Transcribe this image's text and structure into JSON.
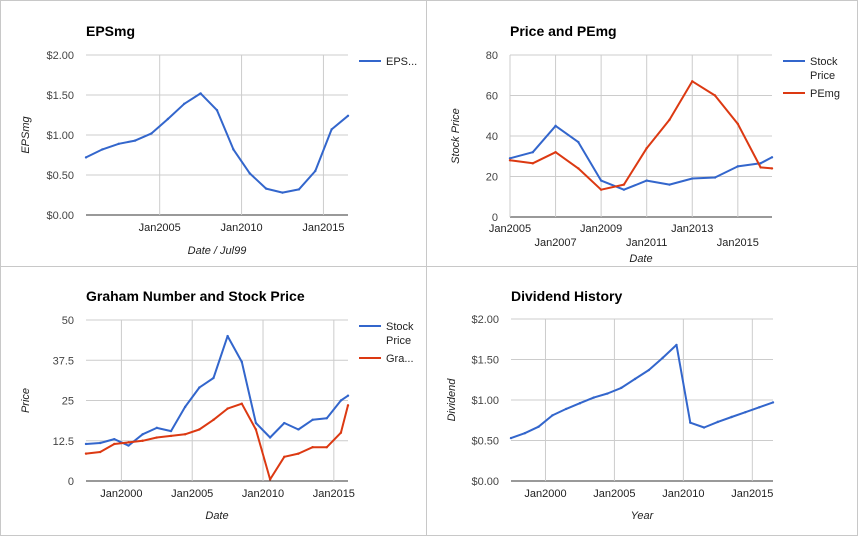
{
  "chart_data": [
    {
      "type": "line",
      "title": "EPSmg",
      "xlabel": "Date / Jul99",
      "ylabel": "EPSmg",
      "ylim": [
        0,
        2
      ],
      "yticks": [
        "$0.00",
        "$0.50",
        "$1.00",
        "$1.50",
        "$2.00"
      ],
      "xlim": [
        2000.5,
        2016.5
      ],
      "xticks": [
        {
          "v": 2005,
          "label": "Jan2005"
        },
        {
          "v": 2010,
          "label": "Jan2010"
        },
        {
          "v": 2015,
          "label": "Jan2015"
        }
      ],
      "legend_position": "right",
      "series": [
        {
          "name": "EPS...",
          "color": "#3366cc",
          "x": [
            2000.5,
            2001.5,
            2002.5,
            2003.5,
            2004.5,
            2005.5,
            2006.5,
            2007.5,
            2008.5,
            2009.5,
            2010.5,
            2011.5,
            2012.5,
            2013.5,
            2014.5,
            2015.5,
            2016.5
          ],
          "y": [
            0.72,
            0.82,
            0.89,
            0.93,
            1.02,
            1.2,
            1.39,
            1.52,
            1.31,
            0.82,
            0.52,
            0.33,
            0.28,
            0.32,
            0.55,
            1.07,
            1.24
          ]
        }
      ]
    },
    {
      "type": "line",
      "title": "Price and PEmg",
      "xlabel": "Date",
      "ylabel": "Stock Price",
      "ylim": [
        0,
        80
      ],
      "yticks": [
        "0",
        "20",
        "40",
        "60",
        "80"
      ],
      "xlim": [
        2005,
        2016.5
      ],
      "xticks_top": [
        {
          "v": 2005,
          "label": "Jan2005"
        },
        {
          "v": 2009,
          "label": "Jan2009"
        },
        {
          "v": 2013,
          "label": "Jan2013"
        }
      ],
      "xticks_bottom": [
        {
          "v": 2007,
          "label": "Jan2007"
        },
        {
          "v": 2011,
          "label": "Jan2011"
        },
        {
          "v": 2015,
          "label": "Jan2015"
        }
      ],
      "legend_position": "right",
      "series": [
        {
          "name": "Stock Price",
          "color": "#3366cc",
          "x": [
            2005,
            2006,
            2007,
            2008,
            2009,
            2010,
            2011,
            2012,
            2013,
            2014,
            2015,
            2016,
            2016.5
          ],
          "y": [
            29,
            32,
            45,
            37,
            18,
            13.5,
            18,
            16,
            19,
            19.5,
            25,
            26.5,
            29.5
          ]
        },
        {
          "name": "PEmg",
          "color": "#dc3912",
          "x": [
            2005,
            2006,
            2007,
            2008,
            2009,
            2010,
            2011,
            2012,
            2013,
            2014,
            2015,
            2016,
            2016.5
          ],
          "y": [
            28,
            26.5,
            32,
            24,
            13.5,
            16,
            34,
            48,
            67,
            60,
            46,
            24.5,
            24
          ]
        }
      ]
    },
    {
      "type": "line",
      "title": "Graham Number and Stock Price",
      "xlabel": "Date",
      "ylabel": "Price",
      "ylim": [
        0,
        50
      ],
      "yticks": [
        "0",
        "12.5",
        "25",
        "37.5",
        "50"
      ],
      "xlim": [
        1997.5,
        2016
      ],
      "xticks": [
        {
          "v": 2000,
          "label": "Jan2000"
        },
        {
          "v": 2005,
          "label": "Jan2005"
        },
        {
          "v": 2010,
          "label": "Jan2010"
        },
        {
          "v": 2015,
          "label": "Jan2015"
        }
      ],
      "legend_position": "right",
      "series": [
        {
          "name": "Stock Price",
          "color": "#3366cc",
          "x": [
            1997.5,
            1998.5,
            1999.5,
            2000.5,
            2001.5,
            2002.5,
            2003.5,
            2004.5,
            2005.5,
            2006.5,
            2007.5,
            2008.5,
            2009.5,
            2010.5,
            2011.5,
            2012.5,
            2013.5,
            2014.5,
            2015.5,
            2016
          ],
          "y": [
            11.5,
            11.8,
            13,
            11,
            14.5,
            16.5,
            15.5,
            23,
            29,
            32,
            45,
            37,
            18,
            13.5,
            18,
            16,
            19,
            19.5,
            25,
            26.5
          ]
        },
        {
          "name": "Gra...",
          "color": "#dc3912",
          "x": [
            1997.5,
            1998.5,
            1999.5,
            2000.5,
            2001.5,
            2002.5,
            2003.5,
            2004.5,
            2005.5,
            2006.5,
            2007.5,
            2008.5,
            2009.5,
            2010.5,
            2011.5,
            2012.5,
            2013.5,
            2014.5,
            2015.5,
            2016
          ],
          "y": [
            8.5,
            9,
            11.5,
            12,
            12.5,
            13.5,
            14,
            14.5,
            16,
            19,
            22.5,
            24,
            16,
            0.5,
            7.5,
            8.5,
            10.5,
            10.5,
            15,
            23.5
          ]
        }
      ]
    },
    {
      "type": "line",
      "title": "Dividend History",
      "xlabel": "Year",
      "ylabel": "Dividend",
      "ylim": [
        0,
        2
      ],
      "yticks": [
        "$0.00",
        "$0.50",
        "$1.00",
        "$1.50",
        "$2.00"
      ],
      "xlim": [
        1997.5,
        2016.5
      ],
      "xticks": [
        {
          "v": 2000,
          "label": "Jan2000"
        },
        {
          "v": 2005,
          "label": "Jan2005"
        },
        {
          "v": 2010,
          "label": "Jan2010"
        },
        {
          "v": 2015,
          "label": "Jan2015"
        }
      ],
      "legend_position": "none",
      "series": [
        {
          "name": "Dividend",
          "color": "#3366cc",
          "x": [
            1997.5,
            1998.5,
            1999.5,
            2000.5,
            2001.5,
            2002.5,
            2003.5,
            2004.5,
            2005.5,
            2006.5,
            2007.5,
            2008.5,
            2009.5,
            2010.5,
            2011.5,
            2012.5,
            2013.5,
            2014.5,
            2015.5,
            2016.5
          ],
          "y": [
            0.53,
            0.59,
            0.67,
            0.81,
            0.89,
            0.96,
            1.03,
            1.08,
            1.15,
            1.26,
            1.37,
            1.52,
            1.68,
            0.72,
            0.66,
            0.73,
            0.79,
            0.85,
            0.91,
            0.97
          ]
        }
      ]
    }
  ]
}
